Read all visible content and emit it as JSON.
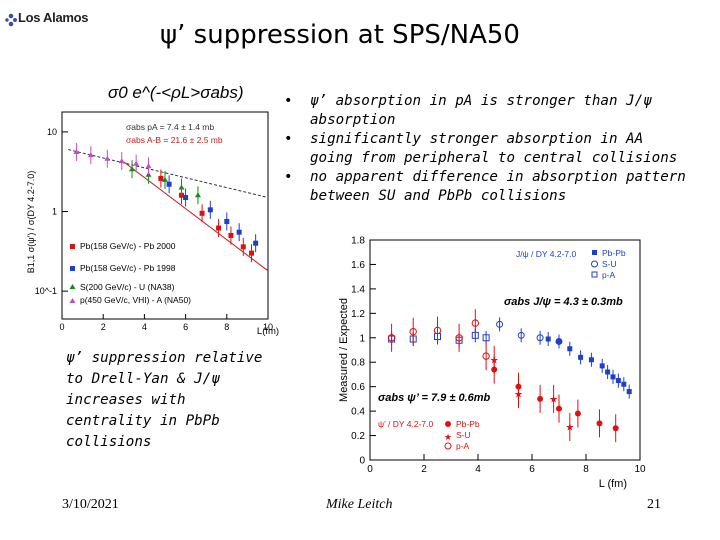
{
  "header": {
    "logo_text": "Los Alamos",
    "title": "ψ’ suppression at SPS/NA50"
  },
  "bullets": [
    "ψ’  absorption in pA is stronger than J/ψ absorption",
    "significantly stronger absorption in AA going from peripheral to central collisions",
    "no apparent difference in absorption pattern between SU and PbPb collisions"
  ],
  "side_text": "ψ’ suppression relative to Drell-Yan & J/ψ increases with centrality in PbPb collisions",
  "footer": {
    "date": "3/10/2021",
    "author": "Mike Leitch",
    "page": "21"
  },
  "chart_data": [
    {
      "type": "scatter",
      "name": "left-plot",
      "formula": "σ0 e^(-<ρL>σabs)",
      "xlabel": "L(fm)",
      "ylabel": "B1,1 σ(ψ') / σ(DY 4.2-7.0)",
      "xlim": [
        0,
        10
      ],
      "yscale": "log",
      "xticks": [
        "0",
        "2",
        "4",
        "6",
        "8",
        "10"
      ],
      "yticks": [
        "10",
        "1",
        "10^-1"
      ],
      "fit_annotations": [
        "σabs pA = 7.4 ± 1.4 mb",
        "σabs A-B = 21.6 ± 2.5 mb"
      ],
      "legend": [
        "Pb(158 GeV/c) - Pb 2000",
        "Pb(158 GeV/c) - Pb 1998",
        "S(200 GeV/c) - U (NA38)",
        "p(450 GeV/c, VHI) - A (NA50)"
      ],
      "series": [
        {
          "name": "Pb-Pb 2000",
          "color": "#dd1111",
          "x": [
            4.8,
            5.8,
            6.8,
            7.6,
            8.2,
            8.8,
            9.2
          ],
          "y": [
            2.6,
            1.6,
            0.95,
            0.62,
            0.5,
            0.36,
            0.3
          ]
        },
        {
          "name": "Pb-Pb 1998",
          "color": "#1f3fc8",
          "x": [
            5.2,
            6.0,
            7.2,
            8.0,
            8.6,
            9.4
          ],
          "y": [
            2.2,
            1.5,
            1.05,
            0.75,
            0.55,
            0.4
          ]
        },
        {
          "name": "S-U (NA38)",
          "color": "#1a8a1a",
          "x": [
            3.4,
            4.2,
            5.0,
            5.8,
            6.6
          ],
          "y": [
            3.4,
            2.9,
            2.5,
            2.0,
            1.6
          ]
        },
        {
          "name": "p-A (NA50)",
          "color": "#c050c0",
          "x": [
            0.7,
            1.4,
            2.2,
            2.9,
            3.6,
            4.2
          ],
          "y": [
            5.6,
            5.1,
            4.6,
            4.3,
            4.0,
            3.7
          ]
        }
      ]
    },
    {
      "type": "scatter",
      "name": "right-plot",
      "xlabel": "L (fm)",
      "ylabel": "Measured / Expected",
      "xlim": [
        0,
        10
      ],
      "ylim": [
        0,
        1.8
      ],
      "xticks": [
        "0",
        "2",
        "4",
        "6",
        "8",
        "10"
      ],
      "yticks": [
        "0",
        "0.2",
        "0.4",
        "0.6",
        "0.8",
        "1",
        "1.2",
        "1.4",
        "1.6",
        "1.8"
      ],
      "upper_legend_title": "J/ψ / DY 4.2-7.0",
      "upper_legend": [
        "Pb-Pb",
        "S-U",
        "p-A"
      ],
      "lower_legend_title": "ψ’ / DY 4.2-7.0",
      "lower_legend": [
        "Pb-Pb",
        "S-U",
        "p-A"
      ],
      "annotations": [
        "σabs J/ψ = 4.3 ± 0.3mb",
        "σabs ψ’ = 7.9 ± 0.6mb"
      ],
      "series": [
        {
          "name": "J/psi Pb-Pb",
          "color": "#1f3fc8",
          "x": [
            6.6,
            7.0,
            7.4,
            7.8,
            8.2,
            8.6,
            8.8,
            9.0,
            9.2,
            9.4,
            9.6
          ],
          "y": [
            0.99,
            0.97,
            0.91,
            0.84,
            0.82,
            0.77,
            0.72,
            0.68,
            0.65,
            0.62,
            0.56
          ]
        },
        {
          "name": "J/psi S-U",
          "color": "#1f3fc8",
          "x": [
            4.8,
            5.6,
            6.3,
            7.0
          ],
          "y": [
            1.11,
            1.02,
            1.0,
            0.97
          ]
        },
        {
          "name": "J/psi p-A",
          "color": "#1f3fc8",
          "x": [
            0.8,
            1.6,
            2.5,
            3.3,
            3.9,
            4.3
          ],
          "y": [
            0.99,
            0.99,
            1.01,
            0.98,
            1.02,
            1.0
          ]
        },
        {
          "name": "psi' Pb-Pb",
          "color": "#dd1111",
          "x": [
            4.6,
            5.5,
            6.3,
            7.0,
            7.7,
            8.5,
            9.1
          ],
          "y": [
            0.74,
            0.6,
            0.5,
            0.42,
            0.38,
            0.3,
            0.26
          ]
        },
        {
          "name": "psi' S-U",
          "color": "#dd1111",
          "x": [
            4.6,
            5.5,
            6.8,
            7.4
          ],
          "y": [
            0.82,
            0.54,
            0.5,
            0.27
          ]
        },
        {
          "name": "psi' p-A",
          "color": "#dd1111",
          "x": [
            0.8,
            1.6,
            2.5,
            3.3,
            3.9,
            4.3
          ],
          "y": [
            1.0,
            1.05,
            1.06,
            1.0,
            1.12,
            0.85
          ]
        }
      ]
    }
  ]
}
